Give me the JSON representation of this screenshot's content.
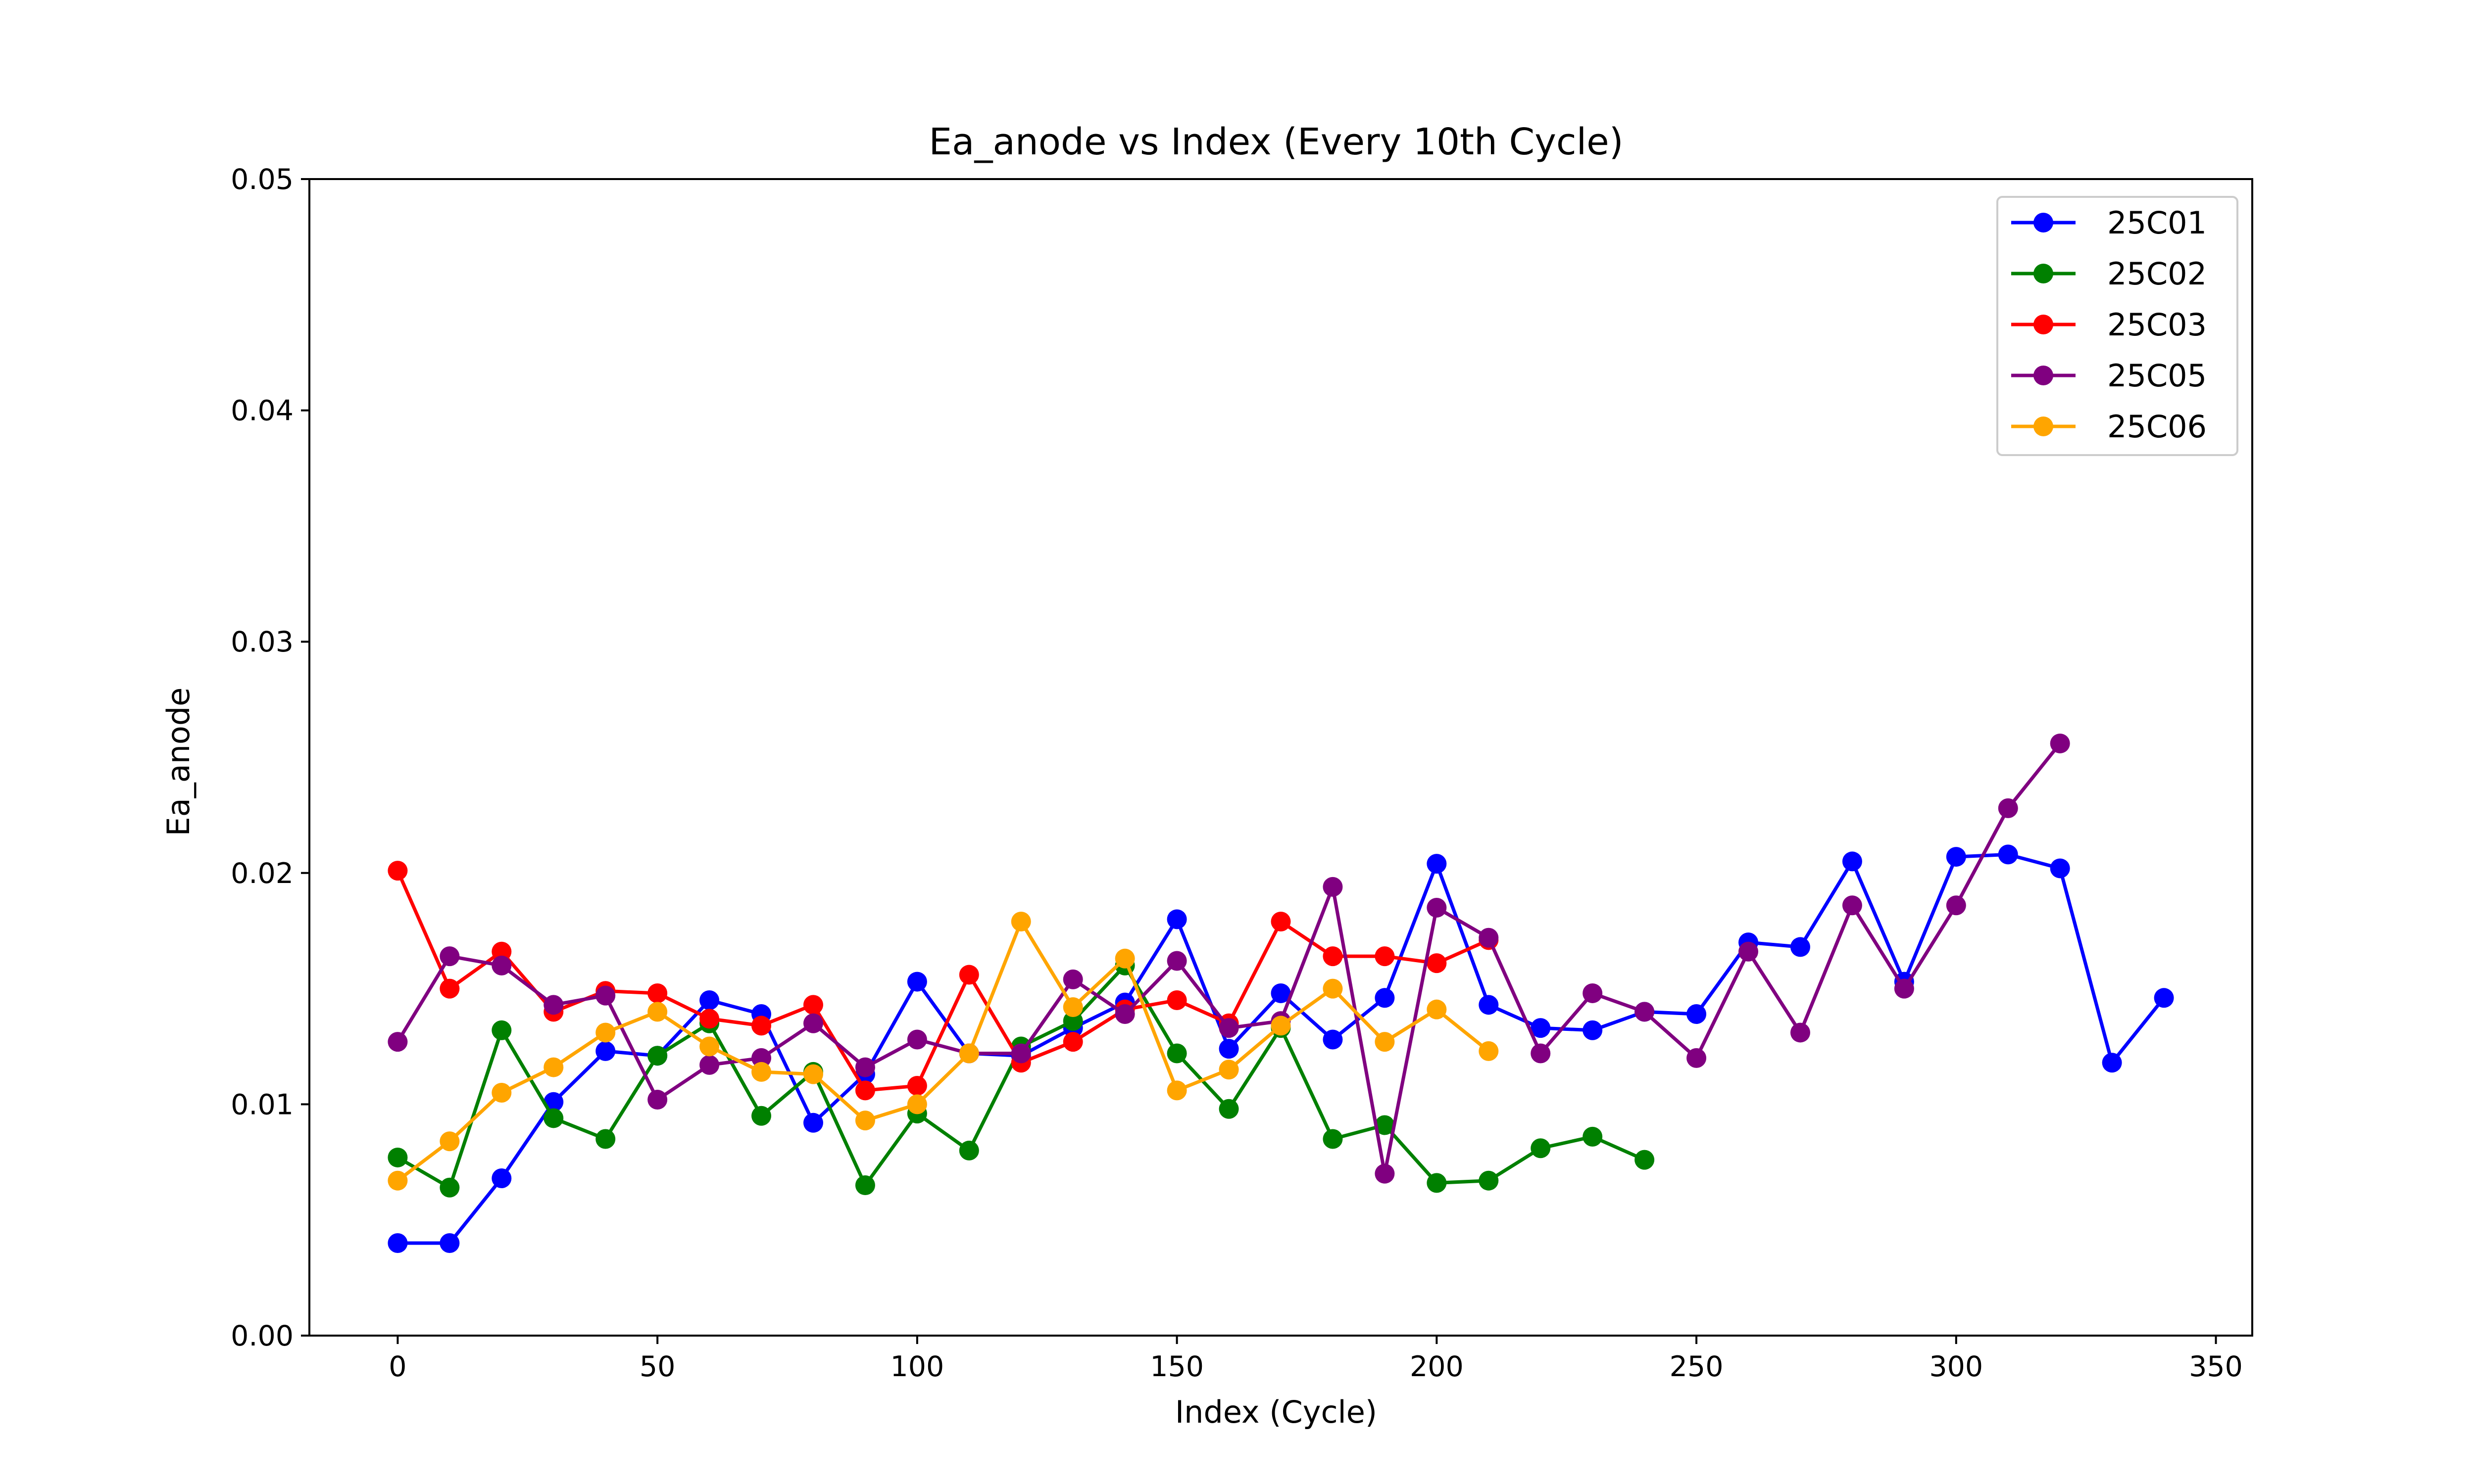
{
  "chart_data": {
    "type": "line",
    "title": "Ea_anode vs Index (Every 10th Cycle)",
    "xlabel": "Index (Cycle)",
    "ylabel": "Ea_anode",
    "xlim": [
      -17,
      357
    ],
    "ylim": [
      0.0,
      0.05
    ],
    "xticks": [
      0,
      50,
      100,
      150,
      200,
      250,
      300,
      350
    ],
    "yticks": [
      0.0,
      0.01,
      0.02,
      0.03,
      0.04,
      0.05
    ],
    "xtick_labels": [
      "0",
      "50",
      "100",
      "150",
      "200",
      "250",
      "300",
      "350"
    ],
    "ytick_labels": [
      "0.00",
      "0.01",
      "0.02",
      "0.03",
      "0.04",
      "0.05"
    ],
    "grid": false,
    "legend_position": "top-right",
    "series": [
      {
        "name": "25C01",
        "color": "#0000ff",
        "x": [
          0,
          10,
          20,
          30,
          40,
          50,
          60,
          70,
          80,
          90,
          100,
          110,
          120,
          130,
          140,
          150,
          160,
          170,
          180,
          190,
          200,
          210,
          220,
          230,
          240,
          250,
          260,
          270,
          280,
          290,
          300,
          310,
          320,
          330,
          340
        ],
        "y": [
          0.004,
          0.004,
          0.0068,
          0.0101,
          0.0123,
          0.0121,
          0.0145,
          0.0139,
          0.0092,
          0.0113,
          0.0153,
          0.0122,
          0.0121,
          0.0133,
          0.0144,
          0.018,
          0.0124,
          0.0148,
          0.0128,
          0.0146,
          0.0204,
          0.0143,
          0.0133,
          0.0132,
          0.014,
          0.0139,
          0.017,
          0.0168,
          0.0205,
          0.0153,
          0.0207,
          0.0208,
          0.0202,
          0.0118,
          0.0146
        ]
      },
      {
        "name": "25C02",
        "color": "#008000",
        "x": [
          0,
          10,
          20,
          30,
          40,
          50,
          60,
          70,
          80,
          90,
          100,
          110,
          120,
          130,
          140,
          150,
          160,
          170,
          180,
          190,
          200,
          210,
          220,
          230,
          240
        ],
        "y": [
          0.0077,
          0.0064,
          0.0132,
          0.0094,
          0.0085,
          0.0121,
          0.0135,
          0.0095,
          0.0114,
          0.0065,
          0.0096,
          0.008,
          0.0125,
          0.0136,
          0.016,
          0.0122,
          0.0098,
          0.0133,
          0.0085,
          0.0091,
          0.0066,
          0.0067,
          0.0081,
          0.0086,
          0.0076
        ]
      },
      {
        "name": "25C03",
        "color": "#ff0000",
        "x": [
          0,
          10,
          20,
          30,
          40,
          50,
          60,
          70,
          80,
          90,
          100,
          110,
          120,
          130,
          140,
          150,
          160,
          170,
          180,
          190,
          200,
          210
        ],
        "y": [
          0.0201,
          0.015,
          0.0166,
          0.014,
          0.0149,
          0.0148,
          0.0137,
          0.0134,
          0.0143,
          0.0106,
          0.0108,
          0.0156,
          0.0118,
          0.0127,
          0.0141,
          0.0145,
          0.0135,
          0.0179,
          0.0164,
          0.0164,
          0.0161,
          0.0171
        ]
      },
      {
        "name": "25C05",
        "color": "#800080",
        "x": [
          0,
          10,
          20,
          30,
          40,
          50,
          60,
          70,
          80,
          90,
          100,
          110,
          120,
          130,
          140,
          150,
          160,
          170,
          180,
          190,
          200,
          210,
          220,
          230,
          240,
          250,
          260,
          270,
          280,
          290,
          300,
          310,
          320
        ],
        "y": [
          0.0127,
          0.0164,
          0.016,
          0.0143,
          0.0147,
          0.0102,
          0.0117,
          0.012,
          0.0135,
          0.0116,
          0.0128,
          0.0122,
          0.0122,
          0.0154,
          0.0139,
          0.0162,
          0.0133,
          0.0136,
          0.0194,
          0.007,
          0.0185,
          0.0172,
          0.0122,
          0.0148,
          0.014,
          0.012,
          0.0166,
          0.0131,
          0.0186,
          0.015,
          0.0186,
          0.0228,
          0.0256
        ]
      },
      {
        "name": "25C06",
        "color": "#ffa500",
        "x": [
          0,
          10,
          20,
          30,
          40,
          50,
          60,
          70,
          80,
          90,
          100,
          110,
          120,
          130,
          140,
          150,
          160,
          170,
          180,
          190,
          200,
          210
        ],
        "y": [
          0.0067,
          0.0084,
          0.0105,
          0.0116,
          0.0131,
          0.014,
          0.0125,
          0.0114,
          0.0113,
          0.0093,
          0.01,
          0.0122,
          0.0179,
          0.0142,
          0.0163,
          0.0106,
          0.0115,
          0.0134,
          0.015,
          0.0127,
          0.0141,
          0.0123
        ]
      }
    ]
  }
}
